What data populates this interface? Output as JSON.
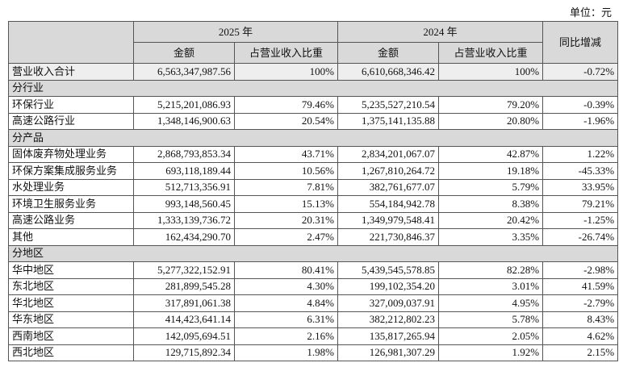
{
  "header": {
    "unit": "单位：元"
  },
  "table": {
    "groups": [
      "2025 年",
      "2024 年",
      "同比增减"
    ],
    "subheaders": [
      "金额",
      "占营业收入比重",
      "金额",
      "占营业收入比重"
    ],
    "rows": [
      [
        "营业收入合计",
        "6,563,347,987.56",
        "100%",
        "6,610,668,346.42",
        "100%",
        "-0.72%"
      ],
      [
        "分行业"
      ],
      [
        "环保行业",
        "5,215,201,086.93",
        "79.46%",
        "5,235,527,210.54",
        "79.20%",
        "-0.39%"
      ],
      [
        "高速公路行业",
        "1,348,146,900.63",
        "20.54%",
        "1,375,141,135.88",
        "20.80%",
        "-1.96%"
      ],
      [
        "分产品"
      ],
      [
        "固体废弃物处理业务",
        "2,868,793,853.34",
        "43.71%",
        "2,834,201,067.07",
        "42.87%",
        "1.22%"
      ],
      [
        "环保方案集成服务业务",
        "693,118,189.44",
        "10.56%",
        "1,267,810,264.72",
        "19.18%",
        "-45.33%"
      ],
      [
        "水处理业务",
        "512,713,356.91",
        "7.81%",
        "382,761,677.07",
        "5.79%",
        "33.95%"
      ],
      [
        "环境卫生服务业务",
        "993,148,560.45",
        "15.13%",
        "554,184,942.78",
        "8.38%",
        "79.21%"
      ],
      [
        "高速公路业务",
        "1,333,139,736.72",
        "20.31%",
        "1,349,979,548.41",
        "20.42%",
        "-1.25%"
      ],
      [
        "其他",
        "162,434,290.70",
        "2.47%",
        "221,730,846.37",
        "3.35%",
        "-26.74%"
      ],
      [
        "分地区"
      ],
      [
        "华中地区",
        "5,277,322,152.91",
        "80.41%",
        "5,439,545,578.85",
        "82.28%",
        "-2.98%"
      ],
      [
        "东北地区",
        "281,899,545.28",
        "4.30%",
        "199,102,354.20",
        "3.01%",
        "41.59%"
      ],
      [
        "华北地区",
        "317,891,061.38",
        "4.84%",
        "327,009,037.91",
        "4.95%",
        "-2.79%"
      ],
      [
        "华东地区",
        "414,423,641.14",
        "6.31%",
        "382,212,802.23",
        "5.78%",
        "8.43%"
      ],
      [
        "西南地区",
        "142,095,694.51",
        "2.16%",
        "135,817,265.94",
        "2.05%",
        "4.62%"
      ],
      [
        "西北地区",
        "129,715,892.34",
        "1.98%",
        "126,981,307.29",
        "1.92%",
        "2.15%"
      ]
    ]
  }
}
